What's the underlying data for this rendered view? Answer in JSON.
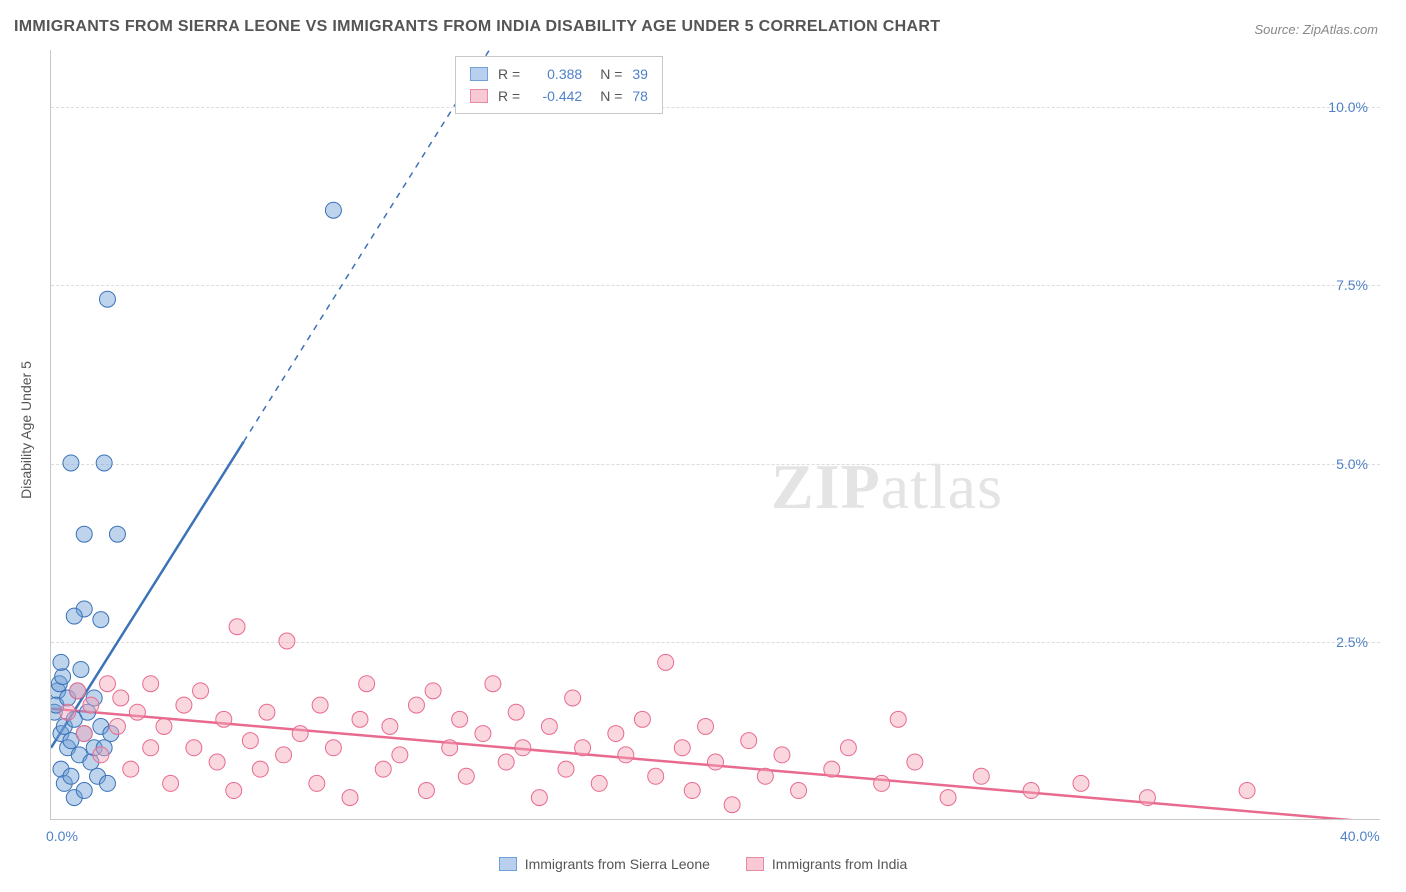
{
  "title": "IMMIGRANTS FROM SIERRA LEONE VS IMMIGRANTS FROM INDIA DISABILITY AGE UNDER 5 CORRELATION CHART",
  "source": "Source: ZipAtlas.com",
  "y_axis_label": "Disability Age Under 5",
  "watermark": {
    "zip": "ZIP",
    "atlas": "atlas"
  },
  "chart": {
    "type": "scatter",
    "xlim": [
      0,
      40
    ],
    "ylim": [
      0,
      10.8
    ],
    "x_ticks": [
      {
        "value": 0,
        "label": "0.0%"
      },
      {
        "value": 40,
        "label": "40.0%"
      }
    ],
    "y_ticks": [
      {
        "value": 2.5,
        "label": "2.5%"
      },
      {
        "value": 5.0,
        "label": "5.0%"
      },
      {
        "value": 7.5,
        "label": "7.5%"
      },
      {
        "value": 10.0,
        "label": "10.0%"
      }
    ],
    "grid_color": "#dcdcdc",
    "background_color": "#ffffff",
    "axis_color": "#c8c8c8",
    "marker_radius": 8,
    "series": [
      {
        "key": "sierra_leone",
        "label": "Immigrants from Sierra Leone",
        "color_fill": "#6fa0d8",
        "color_stroke": "#3b72b8",
        "swatch_fill": "#b8d0ed",
        "R": 0.388,
        "N": 39,
        "trendline": {
          "x1": 0,
          "y1": 1.0,
          "x2": 5.8,
          "y2": 5.3,
          "extended_x2": 14.0,
          "extended_y2": 11.4,
          "stroke": "#3b72b8",
          "dash_extend": true
        },
        "points": [
          [
            0.1,
            1.5
          ],
          [
            0.2,
            1.8
          ],
          [
            0.3,
            1.2
          ],
          [
            0.15,
            1.6
          ],
          [
            0.25,
            1.9
          ],
          [
            0.3,
            0.7
          ],
          [
            0.4,
            1.3
          ],
          [
            0.5,
            1.0
          ],
          [
            0.35,
            2.0
          ],
          [
            0.4,
            0.5
          ],
          [
            0.5,
            1.7
          ],
          [
            0.6,
            1.1
          ],
          [
            0.6,
            0.6
          ],
          [
            0.7,
            1.4
          ],
          [
            0.7,
            0.3
          ],
          [
            0.8,
            1.8
          ],
          [
            0.85,
            0.9
          ],
          [
            0.9,
            2.1
          ],
          [
            1.0,
            1.2
          ],
          [
            1.0,
            0.4
          ],
          [
            1.1,
            1.5
          ],
          [
            1.2,
            0.8
          ],
          [
            1.3,
            1.7
          ],
          [
            1.3,
            1.0
          ],
          [
            1.4,
            0.6
          ],
          [
            1.5,
            2.8
          ],
          [
            1.5,
            1.3
          ],
          [
            1.6,
            1.0
          ],
          [
            1.7,
            0.5
          ],
          [
            1.8,
            1.2
          ],
          [
            0.6,
            5.0
          ],
          [
            1.6,
            5.0
          ],
          [
            1.0,
            4.0
          ],
          [
            2.0,
            4.0
          ],
          [
            1.0,
            2.95
          ],
          [
            0.7,
            2.85
          ],
          [
            1.7,
            7.3
          ],
          [
            8.5,
            8.55
          ],
          [
            0.3,
            2.2
          ]
        ]
      },
      {
        "key": "india",
        "label": "Immigrants from India",
        "color_fill": "#f5a3b8",
        "color_stroke": "#e86b8f",
        "swatch_fill": "#f8c8d4",
        "R": -0.442,
        "N": 78,
        "trendline": {
          "x1": 0,
          "y1": 1.55,
          "x2": 40.0,
          "y2": -0.05,
          "stroke": "#e86b8f",
          "dash_extend": false
        },
        "points": [
          [
            0.5,
            1.5
          ],
          [
            0.8,
            1.8
          ],
          [
            1.0,
            1.2
          ],
          [
            1.2,
            1.6
          ],
          [
            1.5,
            0.9
          ],
          [
            1.7,
            1.9
          ],
          [
            2.0,
            1.3
          ],
          [
            2.1,
            1.7
          ],
          [
            2.4,
            0.7
          ],
          [
            2.6,
            1.5
          ],
          [
            3.0,
            1.0
          ],
          [
            3.0,
            1.9
          ],
          [
            3.4,
            1.3
          ],
          [
            3.6,
            0.5
          ],
          [
            4.0,
            1.6
          ],
          [
            4.3,
            1.0
          ],
          [
            4.5,
            1.8
          ],
          [
            5.0,
            0.8
          ],
          [
            5.2,
            1.4
          ],
          [
            5.5,
            0.4
          ],
          [
            5.6,
            2.7
          ],
          [
            6.0,
            1.1
          ],
          [
            6.3,
            0.7
          ],
          [
            6.5,
            1.5
          ],
          [
            7.0,
            0.9
          ],
          [
            7.1,
            2.5
          ],
          [
            7.5,
            1.2
          ],
          [
            8.0,
            0.5
          ],
          [
            8.1,
            1.6
          ],
          [
            8.5,
            1.0
          ],
          [
            9.0,
            0.3
          ],
          [
            9.3,
            1.4
          ],
          [
            9.5,
            1.9
          ],
          [
            10.0,
            0.7
          ],
          [
            10.2,
            1.3
          ],
          [
            10.5,
            0.9
          ],
          [
            11.0,
            1.6
          ],
          [
            11.3,
            0.4
          ],
          [
            11.5,
            1.8
          ],
          [
            12.0,
            1.0
          ],
          [
            12.3,
            1.4
          ],
          [
            12.5,
            0.6
          ],
          [
            13.0,
            1.2
          ],
          [
            13.3,
            1.9
          ],
          [
            13.7,
            0.8
          ],
          [
            14.0,
            1.5
          ],
          [
            14.2,
            1.0
          ],
          [
            14.7,
            0.3
          ],
          [
            15.0,
            1.3
          ],
          [
            15.5,
            0.7
          ],
          [
            15.7,
            1.7
          ],
          [
            16.0,
            1.0
          ],
          [
            16.5,
            0.5
          ],
          [
            17.0,
            1.2
          ],
          [
            17.3,
            0.9
          ],
          [
            17.8,
            1.4
          ],
          [
            18.2,
            0.6
          ],
          [
            18.5,
            2.2
          ],
          [
            19.0,
            1.0
          ],
          [
            19.3,
            0.4
          ],
          [
            19.7,
            1.3
          ],
          [
            20.0,
            0.8
          ],
          [
            20.5,
            0.2
          ],
          [
            21.0,
            1.1
          ],
          [
            21.5,
            0.6
          ],
          [
            22.0,
            0.9
          ],
          [
            22.5,
            0.4
          ],
          [
            23.5,
            0.7
          ],
          [
            24.0,
            1.0
          ],
          [
            25.0,
            0.5
          ],
          [
            26.0,
            0.8
          ],
          [
            27.0,
            0.3
          ],
          [
            28.0,
            0.6
          ],
          [
            29.5,
            0.4
          ],
          [
            31.0,
            0.5
          ],
          [
            33.0,
            0.3
          ],
          [
            36.0,
            0.4
          ],
          [
            25.5,
            1.4
          ]
        ]
      }
    ]
  },
  "legend_top": {
    "r_prefix": "R =",
    "n_prefix": "N ="
  },
  "colors": {
    "tick_text": "#4f81c7",
    "body_text": "#555555"
  }
}
